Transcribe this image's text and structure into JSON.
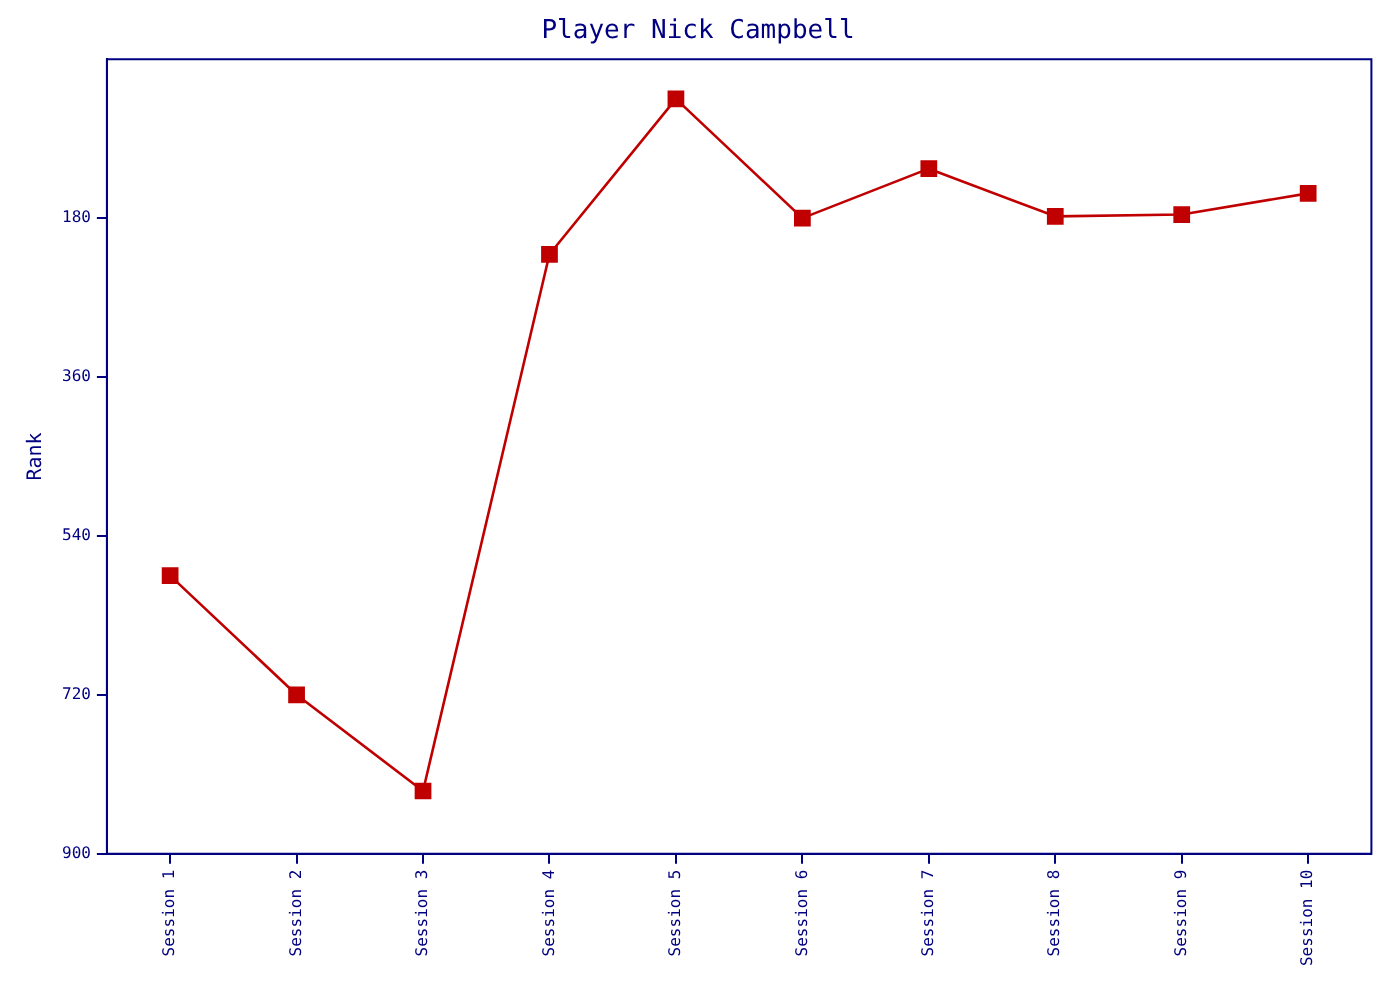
{
  "chart_data": {
    "type": "line",
    "title": "Player Nick Campbell",
    "ylabel": "Rank",
    "categories": [
      "Session 1",
      "Session 2",
      "Session 3",
      "Session 4",
      "Session 5",
      "Session 6",
      "Session 7",
      "Session 8",
      "Session 9",
      "Session 10"
    ],
    "series": [
      {
        "color": "#c00000",
        "values": [
          585,
          720,
          829,
          221,
          45,
          180,
          124,
          178,
          176,
          152
        ]
      }
    ],
    "ylim": [
      900,
      0
    ],
    "yticks": [
      180,
      360,
      540,
      720,
      900
    ],
    "grid": false,
    "legend": false,
    "marker": "square",
    "line_style": "solid"
  }
}
